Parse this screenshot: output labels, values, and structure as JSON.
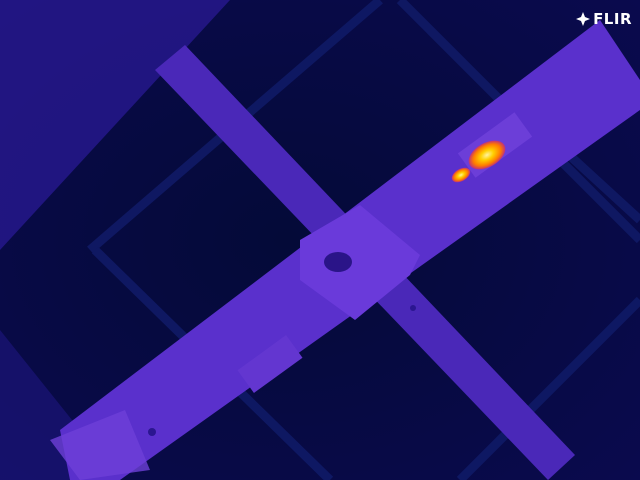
{
  "camera": {
    "brand_label": "FLIR",
    "logo_icon": "flir-flame-icon"
  },
  "image": {
    "kind": "thermal infrared image",
    "palette": "iron",
    "palette_colors": {
      "cold": "#02062a",
      "cool": "#1a1a72",
      "mid": "#5a2ad0",
      "warm": "#ff6600",
      "hot": "#ffd400"
    }
  }
}
